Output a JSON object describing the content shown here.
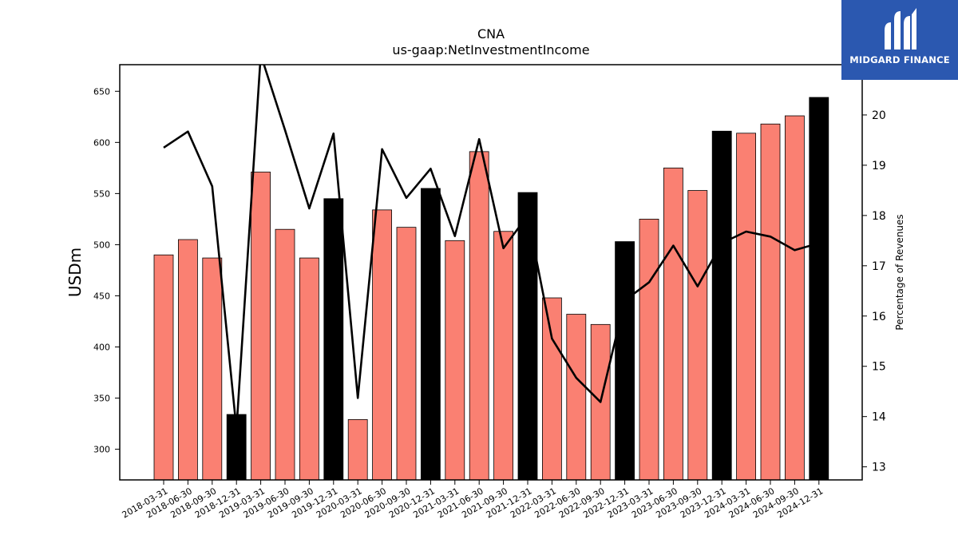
{
  "chart_data": {
    "type": "bar",
    "title": "CNA",
    "subtitle": "us-gaap:NetInvestmentIncome",
    "ylabel": "USDm",
    "y2label": "Percentage of Revenues",
    "ylim": [
      270,
      676
    ],
    "y2lim": [
      12.74,
      21.0
    ],
    "yticks": [
      300,
      350,
      400,
      450,
      500,
      550,
      600,
      650
    ],
    "y2ticks": [
      13,
      14,
      15,
      16,
      17,
      18,
      19,
      20
    ],
    "categories": [
      "2018-03-31",
      "2018-06-30",
      "2018-09-30",
      "2018-12-31",
      "2019-03-31",
      "2019-06-30",
      "2019-09-30",
      "2019-12-31",
      "2020-03-31",
      "2020-06-30",
      "2020-09-30",
      "2020-12-31",
      "2021-03-31",
      "2021-06-30",
      "2021-09-30",
      "2021-12-31",
      "2022-03-31",
      "2022-06-30",
      "2022-09-30",
      "2022-12-31",
      "2023-03-31",
      "2023-06-30",
      "2023-09-30",
      "2023-12-31",
      "2024-03-31",
      "2024-06-30",
      "2024-09-30",
      "2024-12-31"
    ],
    "series": [
      {
        "type": "bar",
        "values": [
          490,
          505,
          487,
          334,
          571,
          515,
          487,
          545,
          329,
          534,
          517,
          555,
          504,
          591,
          513,
          551,
          448,
          432,
          422,
          503,
          525,
          575,
          553,
          611,
          609,
          618,
          626,
          644
        ],
        "quarter_color": "#fa8072",
        "year_end_color": "#000000"
      },
      {
        "type": "line",
        "axis": "right",
        "values": [
          19.35,
          19.67,
          18.58,
          13.75,
          21.2,
          19.7,
          18.14,
          19.63,
          14.37,
          19.32,
          18.35,
          18.93,
          17.59,
          19.52,
          17.35,
          18.0,
          15.55,
          14.77,
          14.29,
          16.31,
          16.67,
          17.4,
          16.59,
          17.45,
          17.68,
          17.58,
          17.31,
          17.45
        ],
        "color": "#000000"
      }
    ],
    "grid": false,
    "legend": "none"
  },
  "logo": {
    "text": "MIDGARD FINANCE"
  }
}
